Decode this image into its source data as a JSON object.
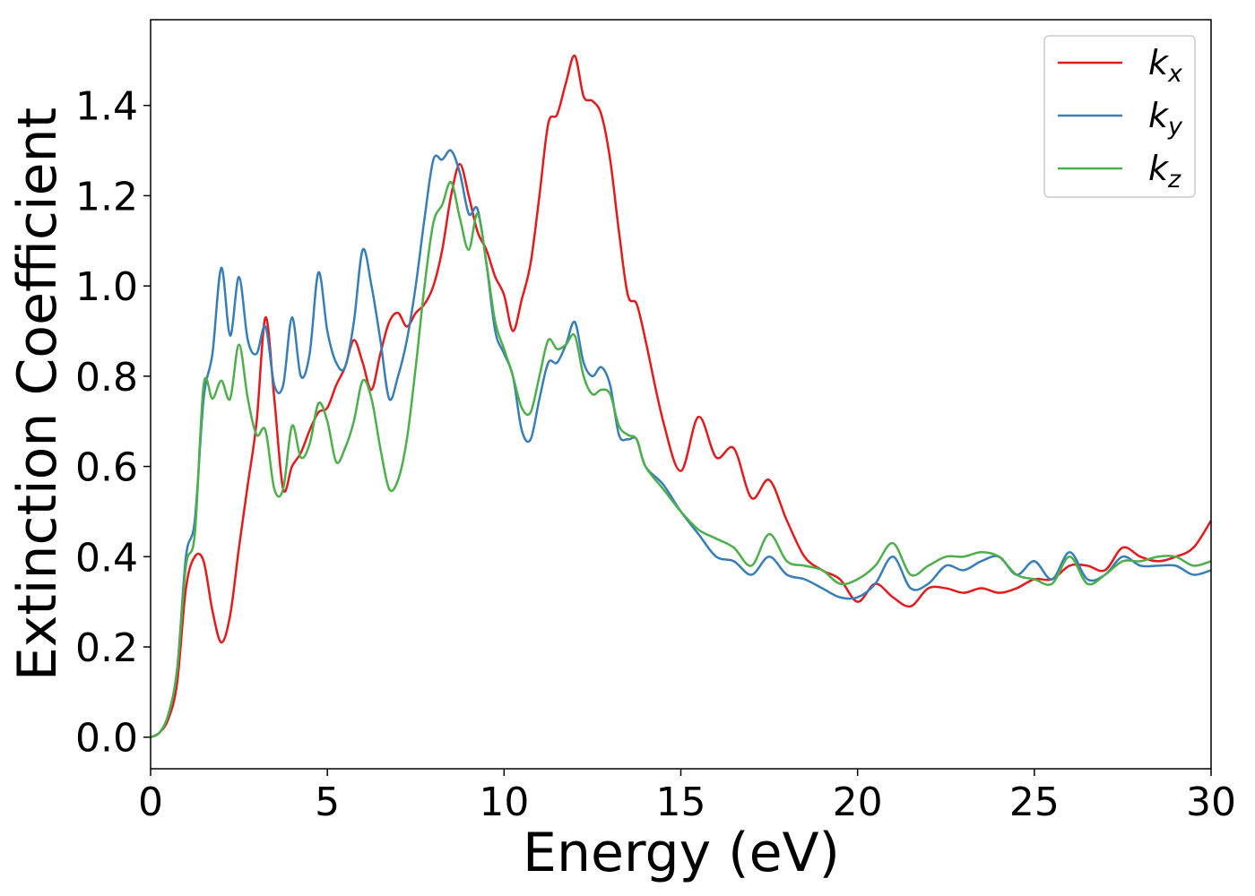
{
  "chart_data": {
    "type": "line",
    "xlabel": "Energy (eV)",
    "ylabel": "Extinction Coefficient",
    "xlim": [
      0,
      30
    ],
    "ylim": [
      -0.07,
      1.59
    ],
    "xticks": [
      0,
      5,
      10,
      15,
      20,
      25,
      30
    ],
    "yticks": [
      {
        "value": 0,
        "label": "0.0"
      },
      {
        "value": 0.2,
        "label": "0.2"
      },
      {
        "value": 0.4,
        "label": "0.4"
      },
      {
        "value": 0.6,
        "label": "0.6"
      },
      {
        "value": 0.8,
        "label": "0.8"
      },
      {
        "value": 1.0,
        "label": "1.0"
      },
      {
        "value": 1.2,
        "label": "1.2"
      },
      {
        "value": 1.4,
        "label": "1.4"
      }
    ],
    "legend": "upper right",
    "x": [
      0,
      0.25,
      0.5,
      0.75,
      1,
      1.25,
      1.5,
      1.75,
      2,
      2.25,
      2.5,
      2.75,
      3,
      3.25,
      3.5,
      3.75,
      4,
      4.25,
      4.5,
      4.75,
      5,
      5.25,
      5.5,
      5.75,
      6,
      6.25,
      6.5,
      6.75,
      7,
      7.25,
      7.5,
      7.75,
      8,
      8.25,
      8.5,
      8.75,
      9,
      9.25,
      9.5,
      9.75,
      10,
      10.25,
      10.5,
      10.75,
      11,
      11.25,
      11.5,
      11.75,
      12,
      12.25,
      12.5,
      12.75,
      13,
      13.25,
      13.5,
      13.75,
      14,
      14.5,
      15,
      15.5,
      16,
      16.5,
      17,
      17.5,
      18,
      18.5,
      19,
      19.5,
      20,
      20.5,
      21,
      21.5,
      22,
      22.5,
      23,
      23.5,
      24,
      24.5,
      25,
      25.5,
      26,
      26.5,
      27,
      27.5,
      28,
      28.5,
      29,
      29.5,
      30
    ],
    "series": [
      {
        "name": "kx",
        "color": "#e41a1c",
        "values": [
          0,
          0.01,
          0.04,
          0.12,
          0.33,
          0.4,
          0.39,
          0.28,
          0.21,
          0.27,
          0.42,
          0.56,
          0.7,
          0.93,
          0.75,
          0.55,
          0.6,
          0.63,
          0.68,
          0.72,
          0.73,
          0.78,
          0.82,
          0.88,
          0.83,
          0.77,
          0.85,
          0.92,
          0.94,
          0.91,
          0.94,
          0.96,
          1.0,
          1.08,
          1.2,
          1.27,
          1.2,
          1.12,
          1.08,
          1.02,
          0.98,
          0.9,
          0.97,
          1.05,
          1.2,
          1.36,
          1.38,
          1.45,
          1.51,
          1.42,
          1.41,
          1.38,
          1.28,
          1.12,
          0.98,
          0.96,
          0.88,
          0.7,
          0.59,
          0.71,
          0.62,
          0.64,
          0.53,
          0.57,
          0.48,
          0.4,
          0.37,
          0.35,
          0.3,
          0.34,
          0.31,
          0.29,
          0.33,
          0.33,
          0.32,
          0.33,
          0.32,
          0.33,
          0.35,
          0.35,
          0.38,
          0.38,
          0.37,
          0.42,
          0.4,
          0.39,
          0.4,
          0.42,
          0.48
        ]
      },
      {
        "name": "ky",
        "color": "#377eb8",
        "values": [
          0,
          0.01,
          0.05,
          0.15,
          0.4,
          0.48,
          0.75,
          0.85,
          1.04,
          0.89,
          1.02,
          0.88,
          0.85,
          0.91,
          0.78,
          0.78,
          0.93,
          0.8,
          0.85,
          1.03,
          0.9,
          0.83,
          0.82,
          0.92,
          1.08,
          1.0,
          0.88,
          0.75,
          0.8,
          0.88,
          1.0,
          1.15,
          1.28,
          1.28,
          1.3,
          1.25,
          1.16,
          1.17,
          1.05,
          0.9,
          0.85,
          0.8,
          0.68,
          0.66,
          0.75,
          0.83,
          0.83,
          0.87,
          0.92,
          0.83,
          0.8,
          0.82,
          0.78,
          0.67,
          0.66,
          0.66,
          0.6,
          0.56,
          0.5,
          0.45,
          0.4,
          0.39,
          0.36,
          0.4,
          0.36,
          0.35,
          0.33,
          0.31,
          0.31,
          0.34,
          0.4,
          0.33,
          0.34,
          0.38,
          0.37,
          0.39,
          0.4,
          0.36,
          0.39,
          0.35,
          0.41,
          0.35,
          0.36,
          0.4,
          0.38,
          0.38,
          0.38,
          0.36,
          0.37
        ]
      },
      {
        "name": "kz",
        "color": "#4daf4a",
        "values": [
          0,
          0.01,
          0.05,
          0.15,
          0.38,
          0.45,
          0.78,
          0.75,
          0.79,
          0.75,
          0.87,
          0.75,
          0.67,
          0.68,
          0.55,
          0.55,
          0.69,
          0.62,
          0.65,
          0.74,
          0.7,
          0.61,
          0.64,
          0.7,
          0.79,
          0.75,
          0.64,
          0.55,
          0.57,
          0.66,
          0.82,
          1.0,
          1.14,
          1.18,
          1.23,
          1.15,
          1.08,
          1.16,
          1.05,
          0.92,
          0.86,
          0.8,
          0.73,
          0.72,
          0.8,
          0.88,
          0.86,
          0.87,
          0.89,
          0.8,
          0.76,
          0.77,
          0.76,
          0.69,
          0.67,
          0.66,
          0.6,
          0.55,
          0.5,
          0.46,
          0.44,
          0.42,
          0.38,
          0.45,
          0.39,
          0.38,
          0.37,
          0.34,
          0.35,
          0.38,
          0.43,
          0.36,
          0.38,
          0.4,
          0.4,
          0.41,
          0.4,
          0.36,
          0.35,
          0.34,
          0.4,
          0.34,
          0.36,
          0.39,
          0.39,
          0.4,
          0.4,
          0.38,
          0.39
        ]
      }
    ]
  }
}
